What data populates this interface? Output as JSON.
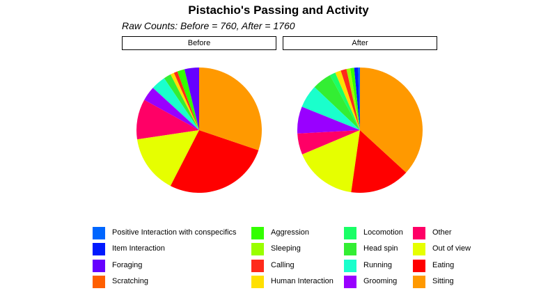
{
  "chart_data": {
    "type": "pie",
    "title": "Pistachio's Passing and Activity",
    "subtitle": "Raw Counts: Before = 760, After = 1760",
    "categories": [
      "Positive Interaction with conspecifics",
      "Item Interaction",
      "Foraging",
      "Scratching",
      "Aggression",
      "Sleeping",
      "Calling",
      "Human Interaction",
      "Locomotion",
      "Head spin",
      "Running",
      "Grooming",
      "Other",
      "Out of view",
      "Eating",
      "Sitting"
    ],
    "colors": [
      "#0066FF",
      "#0019FF",
      "#6600FF",
      "#FF5F00",
      "#33FF00",
      "#99FF00",
      "#FF2A1A",
      "#FFE000",
      "#1AFF66",
      "#33EE33",
      "#1AFFCC",
      "#9900FF",
      "#FF0066",
      "#E6FF00",
      "#FF0000",
      "#FF9900"
    ],
    "legend_position": "bottom",
    "panels": [
      {
        "label": "Before",
        "values": [
          0,
          0,
          4,
          0,
          2,
          0,
          1,
          1,
          0,
          2,
          4,
          4,
          11,
          16,
          29,
          32
        ]
      },
      {
        "label": "After",
        "values": [
          0.5,
          1,
          0,
          0,
          1,
          1,
          1.5,
          1.5,
          1.5,
          5,
          6,
          7,
          5.5,
          16.5,
          15.5,
          37
        ]
      }
    ]
  }
}
